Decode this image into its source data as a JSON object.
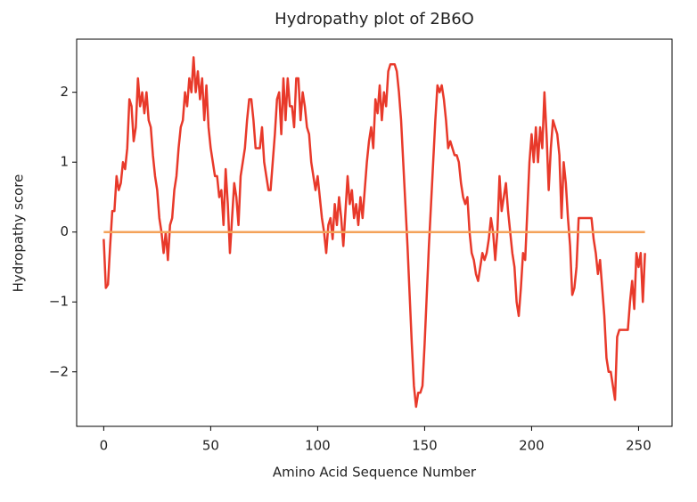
{
  "chart_data": {
    "type": "line",
    "title": "Hydropathy plot of 2B6O",
    "xlabel": "Amino Acid Sequence Number",
    "ylabel": "Hydropathy score",
    "xlim": [
      -12.65,
      265.65
    ],
    "ylim": [
      -2.78,
      2.76
    ],
    "xticks": [
      0,
      50,
      100,
      150,
      200,
      250
    ],
    "yticks": [
      {
        "value": -2,
        "label": "−2"
      },
      {
        "value": -1,
        "label": "−1"
      },
      0,
      1,
      2
    ],
    "grid": false,
    "series": [
      {
        "color": "#e8392a",
        "x": [
          0,
          1,
          2,
          3,
          4,
          5,
          6,
          7,
          8,
          9,
          10,
          11,
          12,
          13,
          14,
          15,
          16,
          17,
          18,
          19,
          20,
          21,
          22,
          23,
          24,
          25,
          26,
          27,
          28,
          29,
          30,
          31,
          32,
          33,
          34,
          35,
          36,
          37,
          38,
          39,
          40,
          41,
          42,
          43,
          44,
          45,
          46,
          47,
          48,
          49,
          50,
          51,
          52,
          53,
          54,
          55,
          56,
          57,
          58,
          59,
          60,
          61,
          62,
          63,
          64,
          65,
          66,
          67,
          68,
          69,
          70,
          71,
          72,
          73,
          74,
          75,
          76,
          77,
          78,
          79,
          80,
          81,
          82,
          83,
          84,
          85,
          86,
          87,
          88,
          89,
          90,
          91,
          92,
          93,
          94,
          95,
          96,
          97,
          98,
          99,
          100,
          101,
          102,
          103,
          104,
          105,
          106,
          107,
          108,
          109,
          110,
          111,
          112,
          113,
          114,
          115,
          116,
          117,
          118,
          119,
          120,
          121,
          122,
          123,
          124,
          125,
          126,
          127,
          128,
          129,
          130,
          131,
          132,
          133,
          134,
          135,
          136,
          137,
          138,
          139,
          140,
          141,
          142,
          143,
          144,
          145,
          146,
          147,
          148,
          149,
          150,
          151,
          152,
          153,
          154,
          155,
          156,
          157,
          158,
          159,
          160,
          161,
          162,
          163,
          164,
          165,
          166,
          167,
          168,
          169,
          170,
          171,
          172,
          173,
          174,
          175,
          176,
          177,
          178,
          179,
          180,
          181,
          182,
          183,
          184,
          185,
          186,
          187,
          188,
          189,
          190,
          191,
          192,
          193,
          194,
          195,
          196,
          197,
          198,
          199,
          200,
          201,
          202,
          203,
          204,
          205,
          206,
          207,
          208,
          209,
          210,
          211,
          212,
          213,
          214,
          215,
          216,
          217,
          218,
          219,
          220,
          221,
          222,
          223,
          224,
          225,
          226,
          227,
          228,
          229,
          230,
          231,
          232,
          233,
          234,
          235,
          236,
          237,
          238,
          239,
          240,
          241,
          242,
          243,
          244,
          245,
          246,
          247,
          248,
          249,
          250,
          251,
          252,
          253
        ],
        "values": [
          -0.1,
          -0.8,
          -0.75,
          -0.2,
          0.3,
          0.3,
          0.8,
          0.6,
          0.7,
          1.0,
          0.9,
          1.2,
          1.9,
          1.8,
          1.3,
          1.5,
          2.2,
          1.8,
          2.0,
          1.7,
          2.0,
          1.6,
          1.5,
          1.1,
          0.8,
          0.6,
          0.2,
          0.0,
          -0.3,
          0.0,
          -0.4,
          0.1,
          0.2,
          0.6,
          0.8,
          1.2,
          1.5,
          1.6,
          2.0,
          1.8,
          2.2,
          2.0,
          2.5,
          2.0,
          2.3,
          1.9,
          2.2,
          1.6,
          2.1,
          1.5,
          1.2,
          1.0,
          0.8,
          0.8,
          0.5,
          0.6,
          0.1,
          0.9,
          0.4,
          -0.3,
          0.2,
          0.7,
          0.5,
          0.1,
          0.8,
          1.0,
          1.2,
          1.6,
          1.9,
          1.9,
          1.6,
          1.2,
          1.2,
          1.2,
          1.5,
          1.0,
          0.8,
          0.6,
          0.6,
          1.0,
          1.4,
          1.9,
          2.0,
          1.4,
          2.2,
          1.6,
          2.2,
          1.8,
          1.8,
          1.5,
          2.2,
          2.2,
          1.6,
          2.0,
          1.8,
          1.5,
          1.4,
          1.0,
          0.8,
          0.6,
          0.8,
          0.5,
          0.2,
          0.0,
          -0.3,
          0.1,
          0.2,
          -0.1,
          0.4,
          0.1,
          0.5,
          0.2,
          -0.2,
          0.3,
          0.8,
          0.4,
          0.6,
          0.2,
          0.4,
          0.1,
          0.5,
          0.2,
          0.6,
          1.0,
          1.3,
          1.5,
          1.2,
          1.9,
          1.7,
          2.1,
          1.6,
          2.0,
          1.8,
          2.3,
          2.4,
          2.4,
          2.4,
          2.3,
          2.0,
          1.6,
          1.0,
          0.4,
          -0.2,
          -0.9,
          -1.6,
          -2.2,
          -2.5,
          -2.3,
          -2.3,
          -2.2,
          -1.6,
          -0.9,
          -0.2,
          0.4,
          1.0,
          1.6,
          2.1,
          2.0,
          2.1,
          1.9,
          1.6,
          1.2,
          1.3,
          1.2,
          1.1,
          1.1,
          1.0,
          0.7,
          0.5,
          0.4,
          0.5,
          0.0,
          -0.3,
          -0.4,
          -0.6,
          -0.7,
          -0.5,
          -0.3,
          -0.4,
          -0.3,
          -0.1,
          0.2,
          0.0,
          -0.4,
          0.0,
          0.8,
          0.3,
          0.5,
          0.7,
          0.3,
          0.0,
          -0.3,
          -0.5,
          -1.0,
          -1.2,
          -0.8,
          -0.3,
          -0.4,
          0.3,
          1.0,
          1.4,
          1.0,
          1.5,
          1.0,
          1.5,
          1.2,
          2.0,
          1.4,
          0.6,
          1.2,
          1.6,
          1.5,
          1.4,
          1.1,
          0.2,
          1.0,
          0.7,
          0.2,
          -0.2,
          -0.9,
          -0.8,
          -0.5,
          0.2,
          0.2,
          0.2,
          0.2,
          0.2,
          0.2,
          0.2,
          -0.1,
          -0.3,
          -0.6,
          -0.4,
          -0.8,
          -1.2,
          -1.8,
          -2.0,
          -2.0,
          -2.2,
          -2.4,
          -1.5,
          -1.4,
          -1.4,
          -1.4,
          -1.4,
          -1.4,
          -1.0,
          -0.7,
          -1.1,
          -0.3,
          -0.5,
          -0.3,
          -1.0,
          -0.3
        ]
      },
      {
        "color": "#f4a259",
        "x": [
          0,
          253
        ],
        "values": [
          0,
          0
        ]
      }
    ]
  }
}
